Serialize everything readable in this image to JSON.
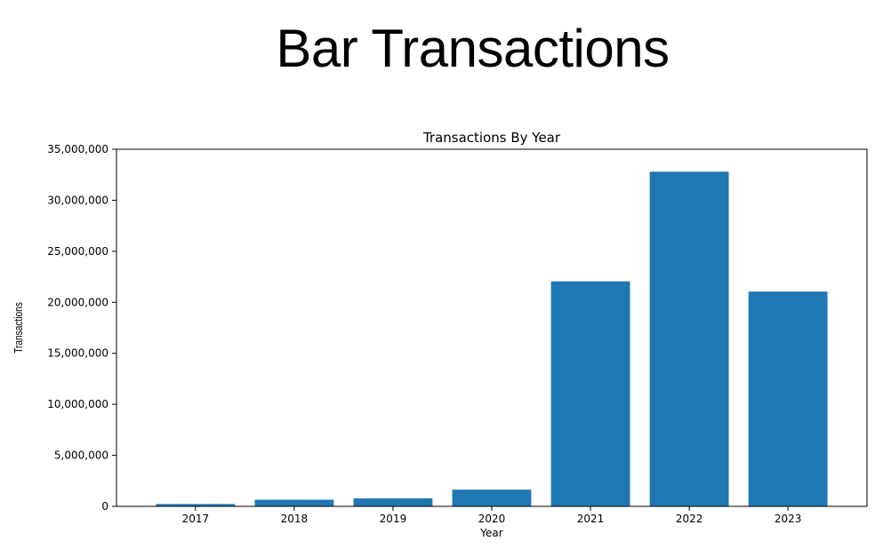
{
  "slide": {
    "title": "Bar Transactions"
  },
  "chart_data": {
    "type": "bar",
    "title": "Transactions By Year",
    "xlabel": "Year",
    "ylabel": "Transactions",
    "categories": [
      "2017",
      "2018",
      "2019",
      "2020",
      "2021",
      "2022",
      "2023"
    ],
    "values": [
      230000,
      650000,
      780000,
      1640000,
      22050000,
      32800000,
      21050000
    ],
    "ylim": [
      0,
      35000000
    ],
    "yticks": [
      0,
      5000000,
      10000000,
      15000000,
      20000000,
      25000000,
      30000000,
      35000000
    ],
    "ytick_labels": [
      "0",
      "5,000,000",
      "10,000,000",
      "15,000,000",
      "20,000,000",
      "25,000,000",
      "30,000,000",
      "35,000,000"
    ],
    "bar_color": "#1f77b4",
    "grid": false,
    "legend": false
  }
}
